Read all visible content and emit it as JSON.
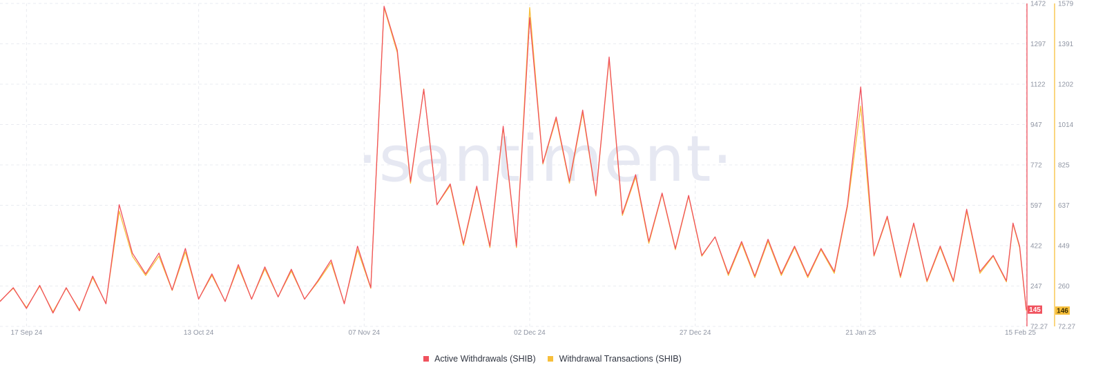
{
  "watermark": "·santiment·",
  "chart_data": {
    "type": "line",
    "x_start": "2024-09-13",
    "x_end": "2025-02-15",
    "x_ticks": [
      {
        "date": "2024-09-17",
        "label": "17 Sep 24"
      },
      {
        "date": "2024-10-13",
        "label": "13 Oct 24"
      },
      {
        "date": "2024-11-07",
        "label": "07 Nov 24"
      },
      {
        "date": "2024-12-02",
        "label": "02 Dec 24"
      },
      {
        "date": "2024-12-27",
        "label": "27 Dec 24"
      },
      {
        "date": "2025-01-21",
        "label": "21 Jan 25"
      },
      {
        "date": "2025-02-15",
        "label": "15 Feb 25"
      }
    ],
    "y_axes": [
      {
        "name": "left",
        "color": "#f0525e",
        "range": [
          72.27,
          1472
        ],
        "ticks": [
          "1472",
          "1297",
          "1122",
          "947",
          "772",
          "597",
          "422",
          "247",
          "72.27"
        ],
        "current": "145"
      },
      {
        "name": "right",
        "color": "#f7bf3b",
        "range": [
          72.27,
          1579
        ],
        "ticks": [
          "1579",
          "1391",
          "1202",
          "1014",
          "825",
          "637",
          "449",
          "260",
          "72.27"
        ],
        "current": "146"
      }
    ],
    "series": [
      {
        "name": "Active Withdrawals (SHIB)",
        "color": "#f0525e",
        "axis": "left",
        "points": [
          [
            "2024-09-13",
            180
          ],
          [
            "2024-09-15",
            240
          ],
          [
            "2024-09-17",
            150
          ],
          [
            "2024-09-19",
            250
          ],
          [
            "2024-09-21",
            130
          ],
          [
            "2024-09-23",
            240
          ],
          [
            "2024-09-25",
            140
          ],
          [
            "2024-09-27",
            290
          ],
          [
            "2024-09-29",
            170
          ],
          [
            "2024-10-01",
            600
          ],
          [
            "2024-10-03",
            390
          ],
          [
            "2024-10-05",
            300
          ],
          [
            "2024-10-07",
            390
          ],
          [
            "2024-10-09",
            230
          ],
          [
            "2024-10-11",
            410
          ],
          [
            "2024-10-13",
            190
          ],
          [
            "2024-10-15",
            300
          ],
          [
            "2024-10-17",
            180
          ],
          [
            "2024-10-19",
            340
          ],
          [
            "2024-10-21",
            190
          ],
          [
            "2024-10-23",
            330
          ],
          [
            "2024-10-25",
            200
          ],
          [
            "2024-10-27",
            320
          ],
          [
            "2024-10-29",
            190
          ],
          [
            "2024-10-31",
            270
          ],
          [
            "2024-11-02",
            360
          ],
          [
            "2024-11-04",
            170
          ],
          [
            "2024-11-06",
            420
          ],
          [
            "2024-11-08",
            240
          ],
          [
            "2024-11-10",
            1460
          ],
          [
            "2024-11-12",
            1270
          ],
          [
            "2024-11-14",
            700
          ],
          [
            "2024-11-16",
            1100
          ],
          [
            "2024-11-18",
            600
          ],
          [
            "2024-11-20",
            690
          ],
          [
            "2024-11-22",
            430
          ],
          [
            "2024-11-24",
            680
          ],
          [
            "2024-11-26",
            420
          ],
          [
            "2024-11-28",
            940
          ],
          [
            "2024-11-30",
            420
          ],
          [
            "2024-12-02",
            1410
          ],
          [
            "2024-12-04",
            780
          ],
          [
            "2024-12-06",
            980
          ],
          [
            "2024-12-08",
            700
          ],
          [
            "2024-12-10",
            1010
          ],
          [
            "2024-12-12",
            640
          ],
          [
            "2024-12-14",
            1240
          ],
          [
            "2024-12-16",
            560
          ],
          [
            "2024-12-18",
            730
          ],
          [
            "2024-12-20",
            440
          ],
          [
            "2024-12-22",
            650
          ],
          [
            "2024-12-24",
            410
          ],
          [
            "2024-12-26",
            640
          ],
          [
            "2024-12-28",
            380
          ],
          [
            "2024-12-30",
            460
          ],
          [
            "2025-01-01",
            300
          ],
          [
            "2025-01-03",
            440
          ],
          [
            "2025-01-05",
            290
          ],
          [
            "2025-01-07",
            450
          ],
          [
            "2025-01-09",
            300
          ],
          [
            "2025-01-11",
            420
          ],
          [
            "2025-01-13",
            290
          ],
          [
            "2025-01-15",
            410
          ],
          [
            "2025-01-17",
            310
          ],
          [
            "2025-01-19",
            600
          ],
          [
            "2025-01-21",
            1110
          ],
          [
            "2025-01-23",
            380
          ],
          [
            "2025-01-25",
            550
          ],
          [
            "2025-01-27",
            290
          ],
          [
            "2025-01-29",
            520
          ],
          [
            "2025-01-31",
            270
          ],
          [
            "2025-02-02",
            420
          ],
          [
            "2025-02-04",
            270
          ],
          [
            "2025-02-06",
            580
          ],
          [
            "2025-02-08",
            310
          ],
          [
            "2025-02-10",
            380
          ],
          [
            "2025-02-12",
            270
          ],
          [
            "2025-02-13",
            520
          ],
          [
            "2025-02-14",
            420
          ],
          [
            "2025-02-15",
            145
          ]
        ]
      },
      {
        "name": "Withdrawal Transactions (SHIB)",
        "color": "#f7bf3b",
        "axis": "right",
        "points": [
          [
            "2024-09-13",
            190
          ],
          [
            "2024-09-15",
            250
          ],
          [
            "2024-09-17",
            160
          ],
          [
            "2024-09-19",
            260
          ],
          [
            "2024-09-21",
            140
          ],
          [
            "2024-09-23",
            250
          ],
          [
            "2024-09-25",
            150
          ],
          [
            "2024-09-27",
            300
          ],
          [
            "2024-09-29",
            180
          ],
          [
            "2024-10-01",
            610
          ],
          [
            "2024-10-03",
            400
          ],
          [
            "2024-10-05",
            310
          ],
          [
            "2024-10-07",
            400
          ],
          [
            "2024-10-09",
            240
          ],
          [
            "2024-10-11",
            420
          ],
          [
            "2024-10-13",
            200
          ],
          [
            "2024-10-15",
            310
          ],
          [
            "2024-10-17",
            190
          ],
          [
            "2024-10-19",
            350
          ],
          [
            "2024-10-21",
            200
          ],
          [
            "2024-10-23",
            340
          ],
          [
            "2024-10-25",
            210
          ],
          [
            "2024-10-27",
            330
          ],
          [
            "2024-10-29",
            200
          ],
          [
            "2024-10-31",
            280
          ],
          [
            "2024-11-02",
            370
          ],
          [
            "2024-11-04",
            180
          ],
          [
            "2024-11-06",
            430
          ],
          [
            "2024-11-08",
            250
          ],
          [
            "2024-11-10",
            1560
          ],
          [
            "2024-11-12",
            1350
          ],
          [
            "2024-11-14",
            740
          ],
          [
            "2024-11-16",
            1180
          ],
          [
            "2024-11-18",
            640
          ],
          [
            "2024-11-20",
            730
          ],
          [
            "2024-11-22",
            450
          ],
          [
            "2024-11-24",
            720
          ],
          [
            "2024-11-26",
            440
          ],
          [
            "2024-11-28",
            1000
          ],
          [
            "2024-11-30",
            440
          ],
          [
            "2024-12-02",
            1560
          ],
          [
            "2024-12-04",
            830
          ],
          [
            "2024-12-06",
            1040
          ],
          [
            "2024-12-08",
            740
          ],
          [
            "2024-12-10",
            1070
          ],
          [
            "2024-12-12",
            680
          ],
          [
            "2024-12-14",
            1320
          ],
          [
            "2024-12-16",
            590
          ],
          [
            "2024-12-18",
            770
          ],
          [
            "2024-12-20",
            460
          ],
          [
            "2024-12-22",
            690
          ],
          [
            "2024-12-24",
            430
          ],
          [
            "2024-12-26",
            680
          ],
          [
            "2024-12-28",
            400
          ],
          [
            "2024-12-30",
            490
          ],
          [
            "2025-01-01",
            310
          ],
          [
            "2025-01-03",
            460
          ],
          [
            "2025-01-05",
            300
          ],
          [
            "2025-01-07",
            470
          ],
          [
            "2025-01-09",
            310
          ],
          [
            "2025-01-11",
            440
          ],
          [
            "2025-01-13",
            300
          ],
          [
            "2025-01-15",
            430
          ],
          [
            "2025-01-17",
            320
          ],
          [
            "2025-01-19",
            630
          ],
          [
            "2025-01-21",
            1100
          ],
          [
            "2025-01-23",
            400
          ],
          [
            "2025-01-25",
            580
          ],
          [
            "2025-01-27",
            300
          ],
          [
            "2025-01-29",
            550
          ],
          [
            "2025-01-31",
            280
          ],
          [
            "2025-02-02",
            440
          ],
          [
            "2025-02-04",
            280
          ],
          [
            "2025-02-06",
            610
          ],
          [
            "2025-02-08",
            320
          ],
          [
            "2025-02-10",
            400
          ],
          [
            "2025-02-12",
            280
          ],
          [
            "2025-02-13",
            550
          ],
          [
            "2025-02-14",
            440
          ],
          [
            "2025-02-15",
            146
          ]
        ]
      }
    ],
    "grid": true,
    "legend_position": "bottom-center"
  },
  "legend": [
    {
      "label": "Active Withdrawals (SHIB)",
      "color": "#f0525e"
    },
    {
      "label": "Withdrawal Transactions (SHIB)",
      "color": "#f7bf3b"
    }
  ]
}
